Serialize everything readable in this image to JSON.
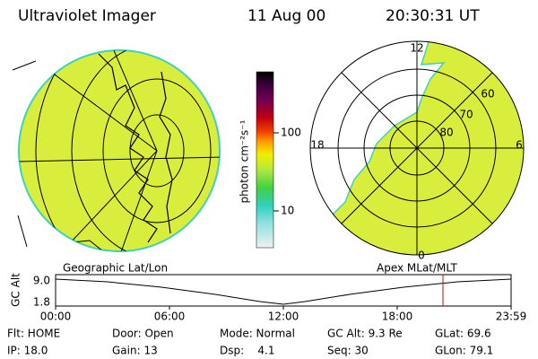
{
  "header": {
    "title": "Ultraviolet Imager",
    "date": "11 Aug 00",
    "time": "20:30:31 UT"
  },
  "colorbar": {
    "label": "photon cm⁻²s⁻¹",
    "ticks": [
      "100",
      "10"
    ]
  },
  "left_panel": {
    "caption": "Geographic Lat/Lon"
  },
  "right_panel": {
    "caption": "Apex MLat/MLT",
    "mlt_labels": [
      "12",
      "18",
      "6",
      "0"
    ],
    "lat_labels": [
      "60",
      "70",
      "80"
    ]
  },
  "altitude_plot": {
    "label": "GC Alt",
    "yticks": [
      "9.0",
      "1.8"
    ],
    "xticks": [
      "00:00",
      "06:00",
      "12:00",
      "18:00",
      "23:59"
    ]
  },
  "status": {
    "rows": [
      [
        "Flt: HOME",
        "Door: Open",
        "Mode: Normal",
        "GC Alt: 9.3 Re",
        "GLat: 69.6"
      ],
      [
        "IP: 18.0",
        "Gain: 13",
        "Dsp:    4.1",
        "Seq: 30",
        "GLon: 79.1"
      ]
    ]
  }
}
